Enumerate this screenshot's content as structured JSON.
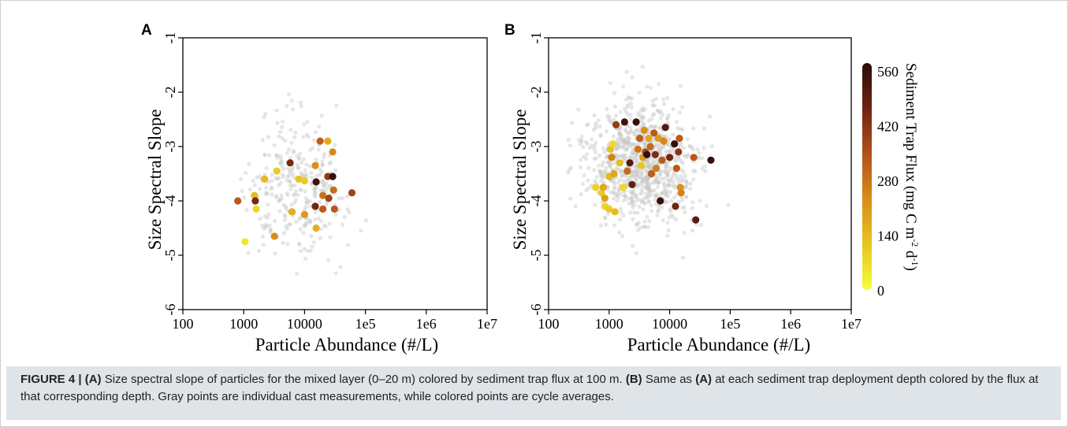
{
  "figure": {
    "caption_label": "FIGURE 4 |",
    "caption_parts": [
      {
        "t": "(A)",
        "b": true
      },
      {
        "t": " Size spectral slope of particles for the mixed layer (0–20 m) colored by sediment trap flux at 100 m. ",
        "b": false
      },
      {
        "t": "(B)",
        "b": true
      },
      {
        "t": " Same as ",
        "b": false
      },
      {
        "t": "(A)",
        "b": true
      },
      {
        "t": " at each sediment trap deployment depth colored by the flux at that corresponding depth. Gray points are individual cast measurements, while colored points are cycle averages.",
        "b": false
      }
    ]
  },
  "colorbar": {
    "label_main": "Sediment Trap Flux (mg C m",
    "label_exp1": "-2",
    "label_mid": " d",
    "label_exp2": "-1",
    "label_end": ")",
    "ticks": [
      0,
      140,
      280,
      420,
      560
    ],
    "range": [
      0,
      580
    ],
    "color_stops": [
      "#f4ff3c",
      "#e8c421",
      "#d88d19",
      "#b4501a",
      "#6e2412",
      "#2a0b08"
    ]
  },
  "colors": {
    "gray_points": "#c8c8c8",
    "frame": "#000000",
    "caption_bg": "#dfe4e8"
  },
  "chart_data": [
    {
      "panel": "A",
      "type": "scatter",
      "xlabel": "Particle Abundance (#/L)",
      "ylabel": "Size Spectral Slope",
      "x_scale": "log",
      "xlim": [
        100,
        10000000
      ],
      "ylim": [
        -6,
        -1
      ],
      "x_ticks": [
        100,
        1000,
        10000,
        100000,
        1000000,
        10000000
      ],
      "x_tick_labels": [
        "100",
        "1000",
        "10000",
        "1e5",
        "1e6",
        "1e7"
      ],
      "y_ticks": [
        -6,
        -5,
        -4,
        -3,
        -2,
        -1
      ],
      "y_tick_labels": [
        "-6",
        "-5",
        "-4",
        "-3",
        "-2",
        "-1"
      ],
      "grid": false,
      "colored_points": [
        {
          "x": 800,
          "y": -4.0,
          "flux": 330
        },
        {
          "x": 1050,
          "y": -4.75,
          "flux": 50
        },
        {
          "x": 1500,
          "y": -3.9,
          "flux": 130
        },
        {
          "x": 1550,
          "y": -4.0,
          "flux": 450
        },
        {
          "x": 1600,
          "y": -4.15,
          "flux": 80
        },
        {
          "x": 2200,
          "y": -3.6,
          "flux": 140
        },
        {
          "x": 3200,
          "y": -4.65,
          "flux": 230
        },
        {
          "x": 3500,
          "y": -3.45,
          "flux": 100
        },
        {
          "x": 5800,
          "y": -3.3,
          "flux": 450
        },
        {
          "x": 6200,
          "y": -4.2,
          "flux": 160
        },
        {
          "x": 8000,
          "y": -3.6,
          "flux": 120
        },
        {
          "x": 10000,
          "y": -3.63,
          "flux": 100
        },
        {
          "x": 10000,
          "y": -4.25,
          "flux": 210
        },
        {
          "x": 15000,
          "y": -3.35,
          "flux": 230
        },
        {
          "x": 15500,
          "y": -3.65,
          "flux": 540
        },
        {
          "x": 15000,
          "y": -4.1,
          "flux": 460
        },
        {
          "x": 15500,
          "y": -4.5,
          "flux": 160
        },
        {
          "x": 18000,
          "y": -2.9,
          "flux": 320
        },
        {
          "x": 20000,
          "y": -3.9,
          "flux": 280
        },
        {
          "x": 20000,
          "y": -4.15,
          "flux": 330
        },
        {
          "x": 24000,
          "y": -2.9,
          "flux": 170
        },
        {
          "x": 24000,
          "y": -3.55,
          "flux": 400
        },
        {
          "x": 25000,
          "y": -3.95,
          "flux": 380
        },
        {
          "x": 29000,
          "y": -3.1,
          "flux": 240
        },
        {
          "x": 29000,
          "y": -3.55,
          "flux": 560
        },
        {
          "x": 30000,
          "y": -3.8,
          "flux": 290
        },
        {
          "x": 31000,
          "y": -4.15,
          "flux": 330
        },
        {
          "x": 60000,
          "y": -3.85,
          "flux": 380
        }
      ]
    },
    {
      "panel": "B",
      "type": "scatter",
      "xlabel": "Particle Abundance (#/L)",
      "ylabel": "Size Spectral Slope",
      "x_scale": "log",
      "xlim": [
        100,
        10000000
      ],
      "ylim": [
        -6,
        -1
      ],
      "x_ticks": [
        100,
        1000,
        10000,
        100000,
        1000000,
        10000000
      ],
      "x_tick_labels": [
        "100",
        "1000",
        "10000",
        "1e5",
        "1e6",
        "1e7"
      ],
      "y_ticks": [
        -6,
        -5,
        -4,
        -3,
        -2,
        -1
      ],
      "y_tick_labels": [
        "-6",
        "-5",
        "-4",
        "-3",
        "-2",
        "-1"
      ],
      "grid": false,
      "colored_points": [
        {
          "x": 600,
          "y": -3.75,
          "flux": 90
        },
        {
          "x": 750,
          "y": -3.85,
          "flux": 100
        },
        {
          "x": 800,
          "y": -3.75,
          "flux": 170
        },
        {
          "x": 850,
          "y": -3.95,
          "flux": 190
        },
        {
          "x": 850,
          "y": -4.1,
          "flux": 80
        },
        {
          "x": 1000,
          "y": -4.15,
          "flux": 100
        },
        {
          "x": 1000,
          "y": -3.55,
          "flux": 140
        },
        {
          "x": 1050,
          "y": -3.05,
          "flux": 120
        },
        {
          "x": 1100,
          "y": -3.2,
          "flux": 250
        },
        {
          "x": 1150,
          "y": -2.95,
          "flux": 70
        },
        {
          "x": 1200,
          "y": -3.5,
          "flux": 180
        },
        {
          "x": 1250,
          "y": -4.2,
          "flux": 130
        },
        {
          "x": 1300,
          "y": -2.6,
          "flux": 400
        },
        {
          "x": 1500,
          "y": -3.3,
          "flux": 130
        },
        {
          "x": 1700,
          "y": -3.75,
          "flux": 70
        },
        {
          "x": 1800,
          "y": -2.55,
          "flux": 540
        },
        {
          "x": 2000,
          "y": -3.45,
          "flux": 300
        },
        {
          "x": 2200,
          "y": -3.3,
          "flux": 500
        },
        {
          "x": 2400,
          "y": -3.7,
          "flux": 480
        },
        {
          "x": 2800,
          "y": -2.55,
          "flux": 560
        },
        {
          "x": 3000,
          "y": -3.05,
          "flux": 280
        },
        {
          "x": 3200,
          "y": -2.85,
          "flux": 320
        },
        {
          "x": 3400,
          "y": -3.35,
          "flux": 110
        },
        {
          "x": 3600,
          "y": -3.2,
          "flux": 200
        },
        {
          "x": 3800,
          "y": -2.7,
          "flux": 230
        },
        {
          "x": 4000,
          "y": -3.1,
          "flux": 370
        },
        {
          "x": 4200,
          "y": -3.15,
          "flux": 560
        },
        {
          "x": 4500,
          "y": -2.85,
          "flux": 180
        },
        {
          "x": 4800,
          "y": -3.0,
          "flux": 300
        },
        {
          "x": 5000,
          "y": -3.5,
          "flux": 320
        },
        {
          "x": 5500,
          "y": -2.75,
          "flux": 330
        },
        {
          "x": 5800,
          "y": -3.15,
          "flux": 440
        },
        {
          "x": 6000,
          "y": -3.4,
          "flux": 260
        },
        {
          "x": 6500,
          "y": -2.85,
          "flux": 200
        },
        {
          "x": 7000,
          "y": -4.0,
          "flux": 560
        },
        {
          "x": 7500,
          "y": -3.25,
          "flux": 330
        },
        {
          "x": 8000,
          "y": -2.9,
          "flux": 240
        },
        {
          "x": 8500,
          "y": -2.65,
          "flux": 510
        },
        {
          "x": 10000,
          "y": -3.2,
          "flux": 460
        },
        {
          "x": 12000,
          "y": -2.95,
          "flux": 560
        },
        {
          "x": 12500,
          "y": -4.1,
          "flux": 460
        },
        {
          "x": 13000,
          "y": -3.4,
          "flux": 330
        },
        {
          "x": 14000,
          "y": -3.1,
          "flux": 420
        },
        {
          "x": 14500,
          "y": -2.85,
          "flux": 330
        },
        {
          "x": 15000,
          "y": -3.75,
          "flux": 220
        },
        {
          "x": 15500,
          "y": -3.85,
          "flux": 250
        },
        {
          "x": 25000,
          "y": -3.2,
          "flux": 330
        },
        {
          "x": 27000,
          "y": -4.35,
          "flux": 500
        },
        {
          "x": 48000,
          "y": -3.25,
          "flux": 560
        }
      ]
    }
  ]
}
